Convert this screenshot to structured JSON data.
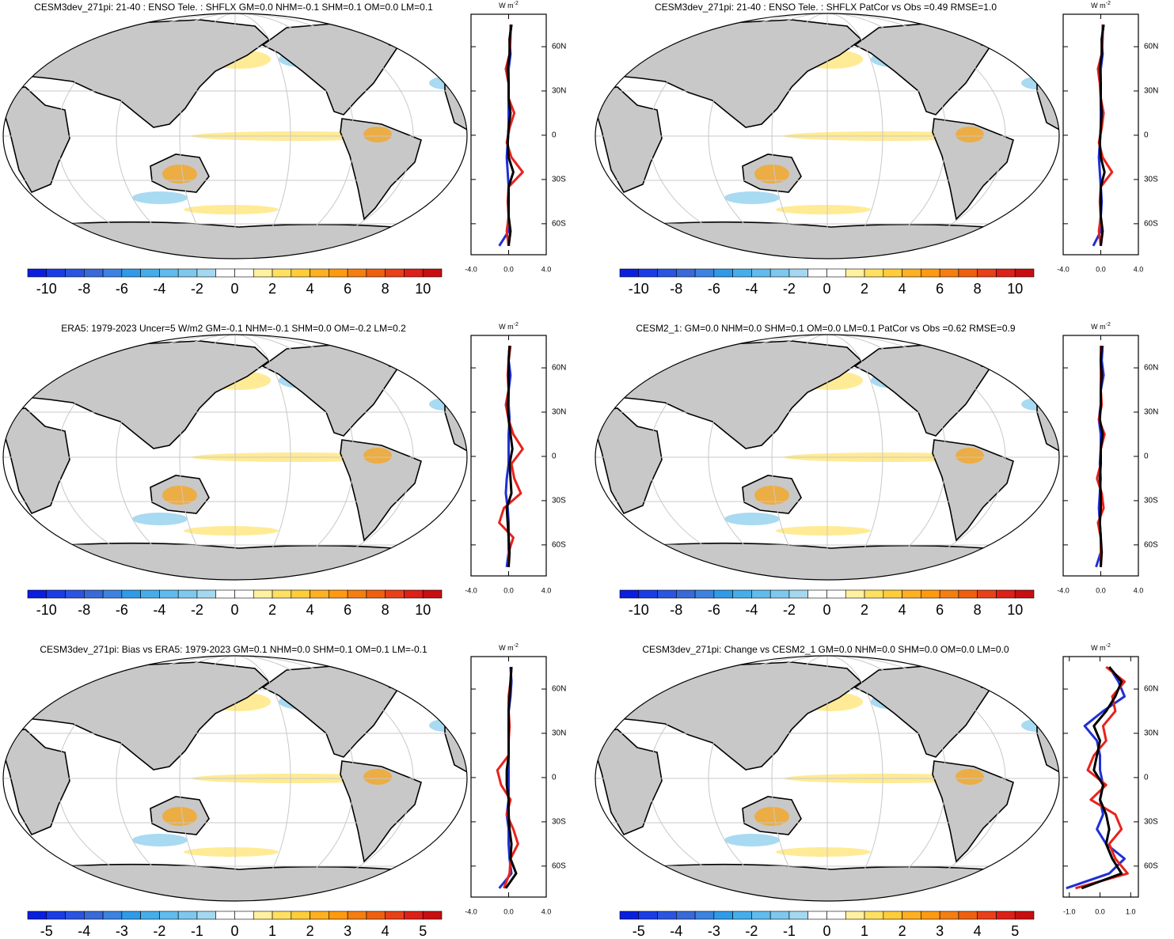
{
  "colorbar_colors": [
    "#0a1ee0",
    "#1a3de6",
    "#2a55e0",
    "#3a6ad8",
    "#3c82e0",
    "#2f9be8",
    "#45aeea",
    "#5fbcee",
    "#7ec8ee",
    "#a4d8f0",
    "#ffffff",
    "#ffffff",
    "#fff1a0",
    "#ffe060",
    "#ffcc3a",
    "#ffb020",
    "#ff9a10",
    "#f57e10",
    "#ee6010",
    "#e84018",
    "#dd2018",
    "#c80e10"
  ],
  "zonal_lat": [
    -75,
    -65,
    -55,
    -45,
    -35,
    -25,
    -15,
    -5,
    5,
    15,
    25,
    35,
    45,
    55,
    65,
    75
  ],
  "panels": [
    {
      "title": "CESM3dev_271pi: 21-40 : ENSO Tele. : SHFLX GM=0.0 NHM=-0.1 SHM=0.1 OM=0.0 LM=0.1",
      "colorbar": {
        "levels": [
          -10,
          -9,
          -8,
          -7,
          -6,
          -5,
          -4,
          -3,
          -2,
          -1,
          0,
          1,
          2,
          3,
          4,
          5,
          6,
          7,
          8,
          9,
          10
        ],
        "ticks": [
          -10,
          -8,
          -6,
          -4,
          -2,
          0,
          2,
          4,
          6,
          8,
          10
        ]
      },
      "zonal": {
        "unit": "W m",
        "unit_exp": "-2",
        "xlim": [
          -4,
          4
        ],
        "xticks": [
          {
            "value": -4,
            "label": "-4.0"
          },
          {
            "value": 0,
            "label": "0.0"
          },
          {
            "value": 4,
            "label": "4.0"
          }
        ],
        "ylim": [
          -81,
          82
        ],
        "yticks": [
          {
            "value": 60,
            "label": "60N"
          },
          {
            "value": 30,
            "label": "30N"
          },
          0,
          {
            "value": -30,
            "label": "30S"
          },
          {
            "value": -60,
            "label": "60S"
          }
        ],
        "series": [
          {
            "color": "#1f2fd6",
            "values": [
              -1,
              0,
              0,
              0,
              0,
              -0.1,
              -0.2,
              -0.1,
              0,
              0,
              0,
              0,
              0,
              0.2,
              0.1,
              0.3
            ]
          },
          {
            "color": "#e8221c",
            "values": [
              0,
              -0.2,
              0,
              -0.1,
              0,
              1.5,
              0.3,
              -0.2,
              0.1,
              0.6,
              0,
              0,
              -0.3,
              0.1,
              0.2,
              0.2
            ]
          },
          {
            "color": "#000000",
            "values": [
              0,
              0.2,
              0,
              0,
              0,
              0.5,
              0,
              -0.1,
              0,
              0.2,
              0,
              0,
              -0.1,
              0.1,
              0.1,
              0.3
            ]
          }
        ]
      }
    },
    {
      "title": "CESM3dev_271pi: 21-40 : ENSO Tele. : SHFLX PatCor vs Obs =0.49 RMSE=1.0",
      "colorbar": {
        "levels": [
          -10,
          -9,
          -8,
          -7,
          -6,
          -5,
          -4,
          -3,
          -2,
          -1,
          0,
          1,
          2,
          3,
          4,
          5,
          6,
          7,
          8,
          9,
          10
        ],
        "ticks": [
          -10,
          -8,
          -6,
          -4,
          -2,
          0,
          2,
          4,
          6,
          8,
          10
        ]
      },
      "zonal": {
        "unit": "W m",
        "unit_exp": "-2",
        "xlim": [
          -4,
          4
        ],
        "xticks": [
          {
            "value": -4,
            "label": "-4.0"
          },
          {
            "value": 0,
            "label": "0.0"
          },
          {
            "value": 4,
            "label": "4.0"
          }
        ],
        "ylim": [
          -81,
          82
        ],
        "yticks": [
          {
            "value": 60,
            "label": "60N"
          },
          {
            "value": 30,
            "label": "30N"
          },
          0,
          {
            "value": -30,
            "label": "30S"
          },
          {
            "value": -60,
            "label": "60S"
          }
        ],
        "series": [
          {
            "color": "#1f2fd6",
            "values": [
              -0.8,
              0,
              0,
              0.1,
              0,
              -0.1,
              -0.2,
              -0.1,
              0,
              0,
              0,
              0,
              0,
              0.2,
              0.1,
              0.3
            ]
          },
          {
            "color": "#e8221c",
            "values": [
              0,
              -0.2,
              0,
              -0.1,
              0,
              1.2,
              0.2,
              -0.2,
              0.1,
              0.3,
              0,
              -0.1,
              -0.3,
              0.1,
              0.2,
              0.2
            ]
          },
          {
            "color": "#000000",
            "values": [
              0,
              0.2,
              0,
              0,
              0,
              0.4,
              0,
              -0.1,
              0,
              0.1,
              0,
              0,
              -0.1,
              0.1,
              0.1,
              0.3
            ]
          }
        ]
      }
    },
    {
      "title": "ERA5: 1979-2023 Uncer=5 W/m2 GM=-0.1 NHM=-0.1 SHM=0.0 OM=-0.2 LM=0.2",
      "colorbar": {
        "levels": [
          -10,
          -9,
          -8,
          -7,
          -6,
          -5,
          -4,
          -3,
          -2,
          -1,
          0,
          1,
          2,
          3,
          4,
          5,
          6,
          7,
          8,
          9,
          10
        ],
        "ticks": [
          -10,
          -8,
          -6,
          -4,
          -2,
          0,
          2,
          4,
          6,
          8,
          10
        ]
      },
      "zonal": {
        "unit": "W m",
        "unit_exp": "-2",
        "xlim": [
          -4,
          4
        ],
        "xticks": [
          {
            "value": -4,
            "label": "-4.0"
          },
          {
            "value": 0,
            "label": "0.0"
          },
          {
            "value": 4,
            "label": "4.0"
          }
        ],
        "ylim": [
          -81,
          82
        ],
        "yticks": [
          {
            "value": 60,
            "label": "60N"
          },
          {
            "value": 30,
            "label": "30N"
          },
          0,
          {
            "value": -30,
            "label": "30S"
          },
          {
            "value": -60,
            "label": "60S"
          }
        ],
        "series": [
          {
            "color": "#1f2fd6",
            "values": [
              -0.2,
              0,
              0,
              0,
              -0.1,
              -0.3,
              -0.2,
              0,
              0,
              0,
              0.1,
              0,
              0,
              0.2,
              0,
              0.1
            ]
          },
          {
            "color": "#e8221c",
            "values": [
              0,
              0,
              0.5,
              -1,
              -0.5,
              1.3,
              0.6,
              0.3,
              1.5,
              0.5,
              0,
              -0.3,
              0,
              -0.1,
              0,
              0.2
            ]
          },
          {
            "color": "#000000",
            "values": [
              0,
              0.1,
              0,
              -0.1,
              -0.2,
              0.3,
              0.2,
              0.1,
              0.4,
              0.2,
              0,
              -0.1,
              0,
              0,
              0,
              0.1
            ]
          }
        ]
      }
    },
    {
      "title": "CESM2_1: GM=0.0 NHM=0.0 SHM=0.1 OM=0.0 LM=0.1 PatCor vs Obs =0.62 RMSE=0.9",
      "colorbar": {
        "levels": [
          -10,
          -9,
          -8,
          -7,
          -6,
          -5,
          -4,
          -3,
          -2,
          -1,
          0,
          1,
          2,
          3,
          4,
          5,
          6,
          7,
          8,
          9,
          10
        ],
        "ticks": [
          -10,
          -8,
          -6,
          -4,
          -2,
          0,
          2,
          4,
          6,
          8,
          10
        ]
      },
      "zonal": {
        "unit": "W m",
        "unit_exp": "-2",
        "xlim": [
          -4,
          4
        ],
        "xticks": [
          {
            "value": -4,
            "label": "-4.0"
          },
          {
            "value": 0,
            "label": "0.0"
          },
          {
            "value": 4,
            "label": "4.0"
          }
        ],
        "ylim": [
          -81,
          82
        ],
        "yticks": [
          {
            "value": 60,
            "label": "60N"
          },
          {
            "value": 30,
            "label": "30N"
          },
          0,
          {
            "value": -30,
            "label": "30S"
          },
          {
            "value": -60,
            "label": "60S"
          }
        ],
        "series": [
          {
            "color": "#1f2fd6",
            "values": [
              -0.5,
              0,
              0,
              -0.1,
              -0.2,
              -0.1,
              0,
              -0.1,
              0,
              0,
              -0.2,
              0,
              0,
              0.3,
              0.1,
              0.2
            ]
          },
          {
            "color": "#e8221c",
            "values": [
              0,
              0,
              0,
              -0.3,
              0.3,
              0.1,
              -0.4,
              0,
              0,
              0.4,
              -0.2,
              0.1,
              0,
              0,
              0,
              0
            ]
          },
          {
            "color": "#000000",
            "values": [
              0,
              0.1,
              0,
              -0.1,
              0,
              0,
              -0.1,
              0,
              0,
              0.2,
              -0.1,
              0,
              0,
              0.1,
              0,
              0.1
            ]
          }
        ]
      }
    },
    {
      "title": "CESM3dev_271pi: Bias vs ERA5: 1979-2023 GM=0.1 NHM=0.0 SHM=0.1 OM=0.1 LM=-0.1",
      "colorbar": {
        "levels": [
          -5,
          -4.5,
          -4,
          -3.5,
          -3,
          -2.5,
          -2,
          -1.5,
          -1,
          -0.5,
          0,
          0.5,
          1,
          1.5,
          2,
          2.5,
          3,
          3.5,
          4,
          4.5,
          5
        ],
        "ticks": [
          -5,
          -4,
          -3,
          -2,
          -1,
          0,
          1,
          2,
          3,
          4,
          5
        ]
      },
      "zonal": {
        "unit": "W m",
        "unit_exp": "-2",
        "xlim": [
          -4,
          4
        ],
        "xticks": [
          {
            "value": -4,
            "label": "-4.0"
          },
          {
            "value": 0,
            "label": "0.0"
          },
          {
            "value": 4,
            "label": "4.0"
          }
        ],
        "ylim": [
          -81,
          82
        ],
        "yticks": [
          {
            "value": 60,
            "label": "60N"
          },
          {
            "value": 30,
            "label": "30N"
          },
          0,
          {
            "value": -30,
            "label": "30S"
          },
          {
            "value": -60,
            "label": "60S"
          }
        ],
        "series": [
          {
            "color": "#1f2fd6",
            "values": [
              -1,
              0.3,
              0.1,
              0,
              0,
              -0.2,
              0,
              0,
              0,
              0,
              0,
              0,
              0,
              0.2,
              0.3,
              0.2
            ]
          },
          {
            "color": "#e8221c",
            "values": [
              -0.5,
              0.1,
              0.2,
              1,
              0.5,
              -0.2,
              0.2,
              -0.8,
              -1.2,
              0,
              0,
              0.1,
              0,
              0,
              0.2,
              0.3
            ]
          },
          {
            "color": "#000000",
            "values": [
              -0.3,
              0.8,
              0.2,
              0.3,
              0.1,
              0,
              0,
              -0.2,
              -0.2,
              0,
              0,
              0,
              0,
              0.1,
              0.2,
              0.3
            ]
          }
        ]
      }
    },
    {
      "title": "CESM3dev_271pi: Change vs CESM2_1 GM=0.0 NHM=0.0 SHM=0.0 OM=0.0 LM=0.0",
      "colorbar": {
        "levels": [
          -5,
          -4.5,
          -4,
          -3.5,
          -3,
          -2.5,
          -2,
          -1.5,
          -1,
          -0.5,
          0,
          0.5,
          1,
          1.5,
          2,
          2.5,
          3,
          3.5,
          4,
          4.5,
          5
        ],
        "ticks": [
          -5,
          -4,
          -3,
          -2,
          -1,
          0,
          1,
          2,
          3,
          4,
          5
        ]
      },
      "zonal": {
        "unit": "W m",
        "unit_exp": "-2",
        "xlim": [
          -1.2,
          1.25
        ],
        "xticks": [
          {
            "value": -1,
            "label": "-1.0"
          },
          {
            "value": 0,
            "label": "0.0"
          },
          {
            "value": 1,
            "label": "1.0"
          }
        ],
        "ylim": [
          -81,
          82
        ],
        "yticks": [
          {
            "value": 60,
            "label": "60N"
          },
          {
            "value": 30,
            "label": "30N"
          },
          0,
          {
            "value": -30,
            "label": "30S"
          },
          {
            "value": -60,
            "label": "60S"
          }
        ],
        "series": [
          {
            "color": "#1f2fd6",
            "values": [
              -1.1,
              0.3,
              0.8,
              0.2,
              -0.1,
              0.1,
              0,
              0.1,
              0,
              0,
              -0.1,
              -0.5,
              0.1,
              0.8,
              0.6,
              0.3
            ]
          },
          {
            "color": "#e8221c",
            "values": [
              -0.8,
              0.9,
              0.5,
              0.3,
              0.7,
              0.5,
              -0.3,
              0.2,
              -0.4,
              -0.2,
              0.2,
              0.1,
              0.5,
              0.4,
              0.8,
              0.2
            ]
          },
          {
            "color": "#000000",
            "values": [
              -0.6,
              0.7,
              0.4,
              0.2,
              0.3,
              0.2,
              0,
              0.1,
              -0.2,
              -0.1,
              0,
              -0.2,
              0.2,
              0.5,
              0.7,
              0.3
            ]
          }
        ]
      }
    }
  ]
}
